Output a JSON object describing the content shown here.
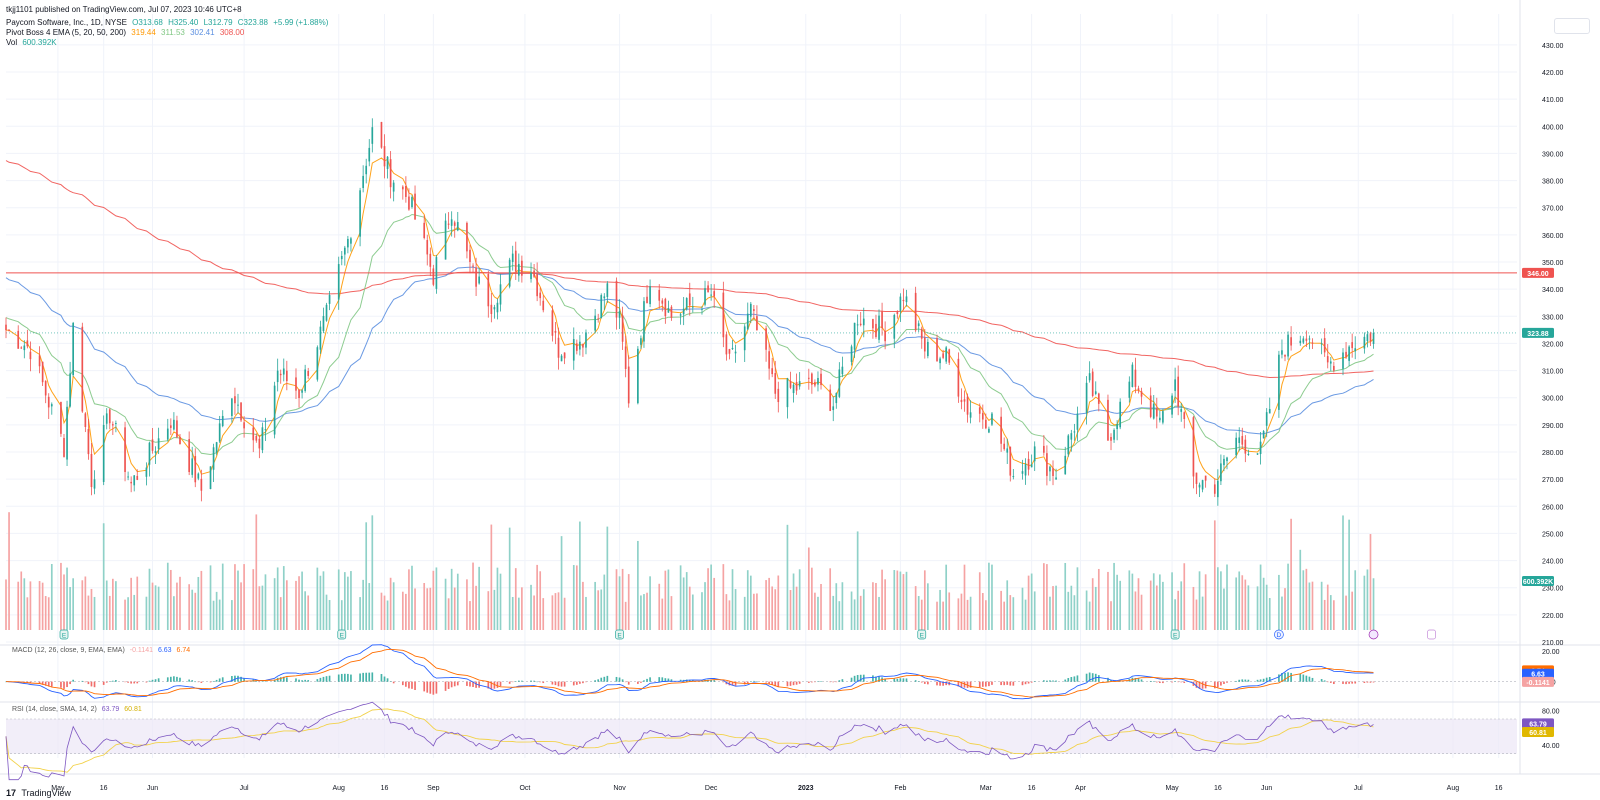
{
  "header": {
    "published": "tkjj1101 published on TradingView.com, Jul 07, 2023 10:46 UTC+8",
    "symbol": "Paycom Software, Inc., 1D, NYSE",
    "ohlc": {
      "o": "O313.68",
      "h": "H325.40",
      "l": "L312.79",
      "c": "C323.88",
      "chg": "+5.99 (+1.88%)"
    },
    "ema_label": "Pivot Boss 4 EMA (5, 20, 50, 200)",
    "ema_values": [
      "319.44",
      "311.53",
      "302.41",
      "308.00"
    ],
    "vol_label": "Vol",
    "vol_value": "600.392K"
  },
  "colors": {
    "up": "#26a69a",
    "down": "#ef5350",
    "up_vol": "#8fd1c8",
    "down_vol": "#f5a3a3",
    "ema5": "#ff9800",
    "ema20": "#81c784",
    "ema50": "#5b8fe0",
    "ema200": "#ef5350",
    "level": "#ef5350",
    "rsi": "#7e57c2",
    "rsi_ma": "#f2d24b",
    "macd": "#2962ff",
    "signal": "#ff6d00"
  },
  "chart_data": [
    {
      "type": "candlestick",
      "title": "Paycom Software, Inc., 1D, NYSE",
      "ylim": [
        210,
        434
      ],
      "y_ticks": [
        "430.00",
        "420.00",
        "410.00",
        "400.00",
        "390.00",
        "380.00",
        "370.00",
        "360.00",
        "350.00",
        "340.00",
        "330.00",
        "320.00",
        "310.00",
        "300.00",
        "290.00",
        "280.00",
        "270.00",
        "260.00",
        "250.00",
        "240.00",
        "230.00",
        "220.00",
        "210.00"
      ],
      "x_ticks": [
        "May",
        "16",
        "Jun",
        "Jul",
        "Aug",
        "16",
        "Sep",
        "Oct",
        "Nov",
        "Dec",
        "2023",
        "Feb",
        "Mar",
        "16",
        "Apr",
        "May",
        "16",
        "Jun",
        "Jul",
        "Aug",
        "16"
      ],
      "price_anchors": [
        [
          "2022-04-14",
          325
        ],
        [
          "2022-04-22",
          318
        ],
        [
          "2022-05-03",
          282
        ],
        [
          "2022-05-06",
          326
        ],
        [
          "2022-05-12",
          270
        ],
        [
          "2022-05-18",
          294
        ],
        [
          "2022-05-25",
          268
        ],
        [
          "2022-06-07",
          292
        ],
        [
          "2022-06-17",
          266
        ],
        [
          "2022-06-27",
          303
        ],
        [
          "2022-07-06",
          280
        ],
        [
          "2022-07-12",
          310
        ],
        [
          "2022-07-19",
          302
        ],
        [
          "2022-07-28",
          330
        ],
        [
          "2022-08-04",
          358
        ],
        [
          "2022-08-12",
          398
        ],
        [
          "2022-08-18",
          382
        ],
        [
          "2022-08-24",
          373
        ],
        [
          "2022-09-01",
          345
        ],
        [
          "2022-09-07",
          370
        ],
        [
          "2022-09-14",
          345
        ],
        [
          "2022-09-20",
          335
        ],
        [
          "2022-09-27",
          350
        ],
        [
          "2022-10-03",
          348
        ],
        [
          "2022-10-12",
          318
        ],
        [
          "2022-10-20",
          322
        ],
        [
          "2022-10-28",
          340
        ],
        [
          "2022-11-01",
          328
        ],
        [
          "2022-11-04",
          300
        ],
        [
          "2022-11-11",
          345
        ],
        [
          "2022-11-18",
          330
        ],
        [
          "2022-12-01",
          338
        ],
        [
          "2022-12-07",
          312
        ],
        [
          "2022-12-14",
          332
        ],
        [
          "2022-12-22",
          302
        ],
        [
          "2023-01-04",
          305
        ],
        [
          "2023-01-10",
          298
        ],
        [
          "2023-01-18",
          330
        ],
        [
          "2023-01-27",
          325
        ],
        [
          "2023-02-02",
          338
        ],
        [
          "2023-02-09",
          318
        ],
        [
          "2023-02-16",
          315
        ],
        [
          "2023-02-23",
          296
        ],
        [
          "2023-03-03",
          292
        ],
        [
          "2023-03-10",
          272
        ],
        [
          "2023-03-17",
          280
        ],
        [
          "2023-03-24",
          272
        ],
        [
          "2023-04-04",
          305
        ],
        [
          "2023-04-10",
          285
        ],
        [
          "2023-04-18",
          308
        ],
        [
          "2023-04-27",
          290
        ],
        [
          "2023-05-02",
          306
        ],
        [
          "2023-05-08",
          270
        ],
        [
          "2023-05-15",
          268
        ],
        [
          "2023-05-22",
          285
        ],
        [
          "2023-05-30",
          280
        ],
        [
          "2023-06-06",
          318
        ],
        [
          "2023-06-14",
          325
        ],
        [
          "2023-06-21",
          312
        ],
        [
          "2023-06-29",
          320
        ],
        [
          "2023-07-06",
          323.88
        ]
      ],
      "ema_end_values": {
        "ema5": 319.44,
        "ema20": 311.53,
        "ema50": 302.41,
        "ema200": 308.0
      },
      "horizontal_level": 346.0,
      "last_price": 323.88,
      "price_labels": [
        "346.00",
        "323.88"
      ],
      "volume_label": "600.392K",
      "earnings_markers": [
        "E",
        "E",
        "E",
        "E",
        "E"
      ],
      "dividend_markers": [
        "D"
      ]
    },
    {
      "type": "line",
      "title": "MACD (12, 26, close, 9, EMA, EMA)",
      "values_shown": [
        "-0.1141",
        "6.63",
        "6.74"
      ],
      "y_ticks": [
        "20.00",
        "0.00"
      ],
      "series": [
        {
          "name": "MACD",
          "last": 6.63
        },
        {
          "name": "Signal",
          "last": 6.74
        },
        {
          "name": "Histogram",
          "last": -0.1141
        }
      ]
    },
    {
      "type": "line",
      "title": "RSI (14, close, SMA, 14, 2)",
      "values_shown": [
        "63.79",
        "60.81"
      ],
      "y_ticks": [
        "80.00",
        "40.00"
      ],
      "band": [
        30,
        70
      ],
      "series": [
        {
          "name": "RSI",
          "last": 63.79
        },
        {
          "name": "RSI MA",
          "last": 60.81
        }
      ]
    }
  ],
  "footer": {
    "brand": "TradingView"
  }
}
